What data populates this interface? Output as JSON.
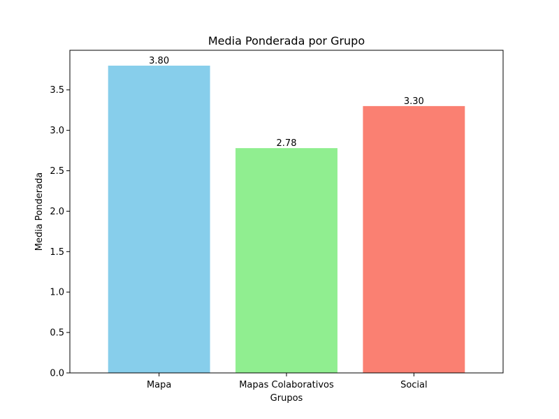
{
  "chart_data": {
    "type": "bar",
    "title": "Media Ponderada por Grupo",
    "xlabel": "Grupos",
    "ylabel": "Media Ponderada",
    "categories": [
      "Mapa",
      "Mapas Colaborativos",
      "Social"
    ],
    "values": [
      3.8,
      2.78,
      3.3
    ],
    "value_labels": [
      "3.80",
      "2.78",
      "3.30"
    ],
    "colors": [
      "#87CEEB",
      "#90EE90",
      "#FA8072"
    ],
    "ylim": [
      0,
      3.99
    ],
    "yticks": [
      0.0,
      0.5,
      1.0,
      1.5,
      2.0,
      2.5,
      3.0,
      3.5
    ],
    "ytick_labels": [
      "0.0",
      "0.5",
      "1.0",
      "1.5",
      "2.0",
      "2.5",
      "3.0",
      "3.5"
    ],
    "grid": false,
    "legend": "none"
  }
}
